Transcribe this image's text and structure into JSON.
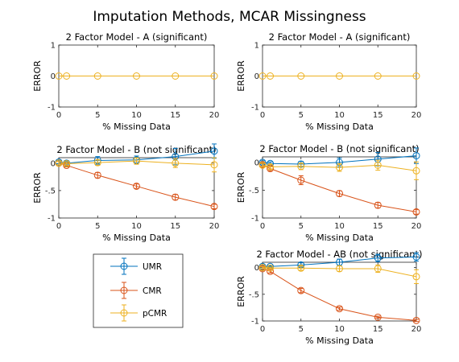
{
  "figure": {
    "title": "Imputation Methods, MCAR Missingness",
    "colors": {
      "UMR": "#0072BD",
      "CMR": "#D95319",
      "pCMR": "#EDB120"
    }
  },
  "legend": {
    "entries": [
      "UMR",
      "CMR",
      "pCMR"
    ]
  },
  "chart_data": [
    {
      "type": "line",
      "title": "2 Factor Model - A (significant)",
      "xlabel": "% Missing Data",
      "ylabel": "ERROR",
      "xlim": [
        0,
        20
      ],
      "ylim": [
        -1,
        1
      ],
      "xticks": [
        0,
        5,
        10,
        15,
        20
      ],
      "yticks": [
        -1,
        0,
        1
      ],
      "x": [
        0,
        1,
        5,
        10,
        15,
        20
      ],
      "series": [
        {
          "name": "pCMR",
          "values": [
            0,
            0,
            0,
            0,
            0,
            0
          ],
          "err": [
            0,
            0,
            0,
            0,
            0,
            0
          ]
        }
      ]
    },
    {
      "type": "line",
      "title": "2 Factor Model - A (significant)",
      "xlabel": "% Missing Data",
      "ylabel": "ERROR",
      "xlim": [
        0,
        20
      ],
      "ylim": [
        -1,
        1
      ],
      "xticks": [
        0,
        5,
        10,
        15,
        20
      ],
      "yticks": [
        -1,
        0,
        1
      ],
      "x": [
        0,
        1,
        5,
        10,
        15,
        20
      ],
      "series": [
        {
          "name": "pCMR",
          "values": [
            0,
            0,
            0,
            0,
            0,
            0
          ],
          "err": [
            0,
            0,
            0,
            0,
            0,
            0
          ]
        }
      ]
    },
    {
      "type": "line",
      "title": "2 Factor Model - B (not significant)",
      "xlabel": "% Missing Data",
      "ylabel": "ERROR",
      "xlim": [
        0,
        20
      ],
      "ylim": [
        -1,
        0.1
      ],
      "xticks": [
        0,
        5,
        10,
        15,
        20
      ],
      "yticks": [
        -1,
        -0.5,
        0
      ],
      "x": [
        0,
        1,
        5,
        10,
        15,
        20
      ],
      "series": [
        {
          "name": "UMR",
          "values": [
            0.02,
            0.0,
            0.05,
            0.06,
            0.12,
            0.22
          ],
          "err": [
            0.03,
            0.03,
            0.07,
            0.07,
            0.15,
            0.13
          ]
        },
        {
          "name": "CMR",
          "values": [
            0.0,
            -0.04,
            -0.22,
            -0.42,
            -0.62,
            -0.79
          ],
          "err": [
            0.03,
            0.03,
            0.05,
            0.04,
            0.05,
            0.04
          ]
        },
        {
          "name": "pCMR",
          "values": [
            0.0,
            -0.01,
            0.01,
            0.04,
            0.0,
            -0.03
          ],
          "err": [
            0.03,
            0.03,
            0.05,
            0.06,
            0.08,
            0.13
          ]
        }
      ]
    },
    {
      "type": "line",
      "title": "2 Factor Model - B (not significant)",
      "xlabel": "% Missing Data",
      "ylabel": "ERROR",
      "xlim": [
        0,
        20
      ],
      "ylim": [
        -1,
        0.1
      ],
      "xticks": [
        0,
        5,
        10,
        15,
        20
      ],
      "yticks": [
        -1,
        -0.5,
        0
      ],
      "x": [
        0,
        1,
        5,
        10,
        15,
        20
      ],
      "series": [
        {
          "name": "UMR",
          "values": [
            0.0,
            -0.02,
            -0.03,
            0.0,
            0.06,
            0.12
          ],
          "err": [
            0.03,
            0.03,
            0.05,
            0.08,
            0.12,
            0.14
          ]
        },
        {
          "name": "CMR",
          "values": [
            -0.04,
            -0.11,
            -0.32,
            -0.56,
            -0.77,
            -0.89
          ],
          "err": [
            0.03,
            0.04,
            0.08,
            0.05,
            0.05,
            0.04
          ]
        },
        {
          "name": "pCMR",
          "values": [
            -0.05,
            -0.08,
            -0.07,
            -0.09,
            -0.05,
            -0.15
          ],
          "err": [
            0.03,
            0.04,
            0.06,
            0.07,
            0.09,
            0.16
          ]
        }
      ]
    },
    {
      "type": "line",
      "title": "2 Factor Model - AB (not significant)",
      "xlabel": "% Missing Data",
      "ylabel": "ERROR",
      "xlim": [
        0,
        20
      ],
      "ylim": [
        -1,
        0.1
      ],
      "xticks": [
        0,
        5,
        10,
        15,
        20
      ],
      "yticks": [
        -1,
        -0.5,
        0
      ],
      "x": [
        0,
        1,
        5,
        10,
        15,
        20
      ],
      "series": [
        {
          "name": "UMR",
          "values": [
            0.02,
            0.02,
            0.05,
            0.1,
            0.18,
            0.2
          ],
          "err": [
            0.02,
            0.02,
            0.04,
            0.06,
            0.07,
            0.08
          ]
        },
        {
          "name": "CMR",
          "values": [
            -0.02,
            -0.07,
            -0.43,
            -0.77,
            -0.93,
            -0.99
          ],
          "err": [
            0.03,
            0.03,
            0.04,
            0.03,
            0.02,
            0.02
          ]
        },
        {
          "name": "pCMR",
          "values": [
            0.0,
            -0.01,
            -0.01,
            -0.02,
            -0.02,
            -0.17
          ],
          "err": [
            0.02,
            0.02,
            0.04,
            0.05,
            0.07,
            0.13
          ]
        }
      ]
    }
  ]
}
